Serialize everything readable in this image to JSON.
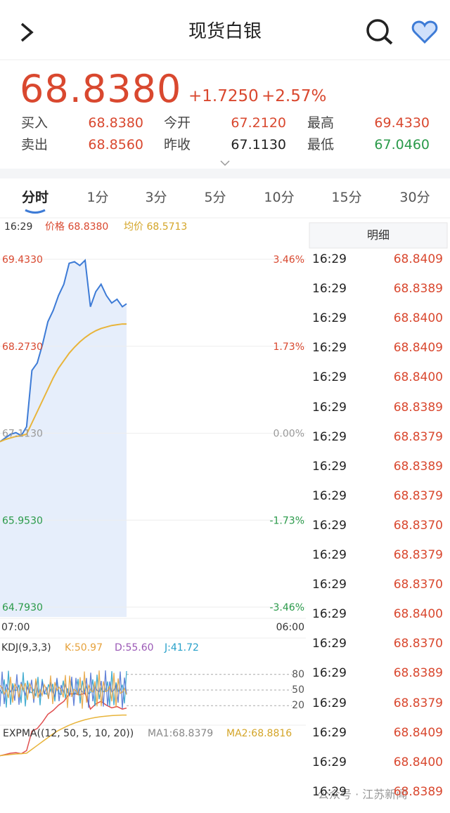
{
  "header": {
    "title": "现货白银"
  },
  "quote": {
    "price": "68.8380",
    "change": "+1.7250",
    "change_pct": "+2.57%",
    "fields": [
      {
        "label": "买入",
        "value": "68.8380",
        "color": "#d9482f"
      },
      {
        "label": "今开",
        "value": "67.2120",
        "color": "#d9482f"
      },
      {
        "label": "最高",
        "value": "69.4330",
        "color": "#d9482f"
      },
      {
        "label": "卖出",
        "value": "68.8560",
        "color": "#d9482f"
      },
      {
        "label": "昨收",
        "value": "67.1130",
        "color": "#222222"
      },
      {
        "label": "最低",
        "value": "67.0460",
        "color": "#2a9a4a"
      }
    ]
  },
  "tabs": [
    "分时",
    "1分",
    "3分",
    "5分",
    "10分",
    "15分",
    "30分"
  ],
  "info": {
    "time": "16:29",
    "price": "价格 68.8380",
    "average": "均价 68.5713"
  },
  "chart_data": {
    "type": "line",
    "x": [
      0,
      24,
      48,
      72,
      96,
      120,
      144,
      168,
      192,
      216,
      240,
      264,
      288,
      312,
      336,
      360,
      384,
      408,
      432,
      456,
      480,
      504,
      528,
      552,
      571
    ],
    "xlim": [
      0,
      1380
    ],
    "x_start": "07:00",
    "x_end": "06:00",
    "ylim": [
      64.793,
      69.433
    ],
    "yticks": [
      {
        "value": 69.433,
        "label": "69.4330"
      },
      {
        "value": 68.273,
        "label": "68.2730"
      },
      {
        "value": 67.113,
        "label": "67.1130"
      },
      {
        "value": 65.953,
        "label": "65.9530"
      },
      {
        "value": 64.793,
        "label": "64.7930"
      }
    ],
    "y2lim": [
      -3.46,
      3.46
    ],
    "y2ticks": [
      {
        "value": 3.46,
        "label": "3.46%"
      },
      {
        "value": 1.73,
        "label": "1.73%"
      },
      {
        "value": 0,
        "label": "0.00%"
      },
      {
        "value": -1.73,
        "label": "-1.73%"
      },
      {
        "value": -3.46,
        "label": "-3.46%"
      }
    ],
    "series": [
      {
        "color": "#3d7bd6",
        "values": [
          67.0,
          67.05,
          67.1,
          67.12,
          67.08,
          67.2,
          67.95,
          68.05,
          68.3,
          68.6,
          68.75,
          68.95,
          69.1,
          69.38,
          69.4,
          69.35,
          69.42,
          68.8,
          69.0,
          69.1,
          68.95,
          68.85,
          68.9,
          68.8,
          68.84
        ]
      },
      {
        "color": "#e8b43a",
        "values": [
          67.0,
          67.03,
          67.05,
          67.07,
          67.08,
          67.1,
          67.25,
          67.4,
          67.55,
          67.7,
          67.85,
          67.98,
          68.08,
          68.18,
          68.26,
          68.33,
          68.39,
          68.44,
          68.48,
          68.51,
          68.53,
          68.55,
          68.56,
          68.57,
          68.57
        ]
      }
    ]
  },
  "kdj": {
    "title": "KDJ(9,3,3)",
    "k": "K:50.97",
    "d": "D:55.60",
    "j": "J:41.72",
    "ylim": [
      0,
      100
    ],
    "yticks": [
      80,
      50,
      20
    ]
  },
  "expma": {
    "title": "EXPMA((12, 50, 5, 10, 20))",
    "ma1": "MA1:68.8379",
    "ma2": "MA2:68.8816"
  },
  "detail": {
    "title": "明细",
    "rows": [
      [
        "16:29",
        "68.8409"
      ],
      [
        "16:29",
        "68.8389"
      ],
      [
        "16:29",
        "68.8400"
      ],
      [
        "16:29",
        "68.8409"
      ],
      [
        "16:29",
        "68.8400"
      ],
      [
        "16:29",
        "68.8389"
      ],
      [
        "16:29",
        "68.8379"
      ],
      [
        "16:29",
        "68.8389"
      ],
      [
        "16:29",
        "68.8379"
      ],
      [
        "16:29",
        "68.8370"
      ],
      [
        "16:29",
        "68.8379"
      ],
      [
        "16:29",
        "68.8370"
      ],
      [
        "16:29",
        "68.8400"
      ],
      [
        "16:29",
        "68.8370"
      ],
      [
        "16:29",
        "68.8389"
      ],
      [
        "16:29",
        "68.8379"
      ],
      [
        "16:29",
        "68.8409"
      ],
      [
        "16:29",
        "68.8400"
      ],
      [
        "16:29",
        "68.8389"
      ]
    ]
  },
  "watermark": "公众号 · 江苏新闻"
}
